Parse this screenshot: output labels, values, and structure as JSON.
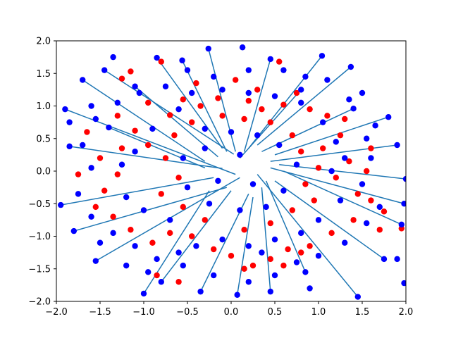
{
  "chart_data": {
    "type": "scatter",
    "title": "",
    "xlabel": "",
    "ylabel": "",
    "xlim": [
      -2,
      2
    ],
    "ylim": [
      -2,
      2
    ],
    "grid": false,
    "legend": "none",
    "xticks": [
      "−2.0",
      "−1.5",
      "−1.0",
      "−0.5",
      "0.0",
      "0.5",
      "1.0",
      "1.5",
      "2.0"
    ],
    "yticks": [
      "−2.0",
      "−1.5",
      "−1.0",
      "−0.5",
      "0.0",
      "0.5",
      "1.0",
      "1.5",
      "2.0"
    ],
    "colors": {
      "red_points": "#ff0000",
      "blue_points": "#0000ff",
      "lines": "#1f77b4"
    },
    "series": [
      {
        "kind": "segments",
        "segments": [
          [
            [
              0.03,
              0.26
            ],
            [
              -1.45,
              1.55
            ]
          ],
          [
            [
              -0.15,
              0.22
            ],
            [
              -1.1,
              1.3
            ]
          ],
          [
            [
              -0.3,
              0.15
            ],
            [
              -1.7,
              1.4
            ]
          ],
          [
            [
              0.05,
              -0.05
            ],
            [
              -1.9,
              0.95
            ]
          ],
          [
            [
              -0.1,
              0.04
            ],
            [
              -1.85,
              0.38
            ]
          ],
          [
            [
              -0.2,
              -0.1
            ],
            [
              -1.95,
              -0.52
            ]
          ],
          [
            [
              -0.05,
              -0.25
            ],
            [
              -1.8,
              -0.92
            ]
          ],
          [
            [
              0.1,
              -0.1
            ],
            [
              -1.55,
              -1.38
            ]
          ],
          [
            [
              -0.25,
              -0.3
            ],
            [
              -1.0,
              -1.88
            ]
          ],
          [
            [
              0.0,
              -0.3
            ],
            [
              -0.8,
              -1.7
            ]
          ],
          [
            [
              0.2,
              -0.35
            ],
            [
              -0.35,
              -1.85
            ]
          ],
          [
            [
              0.25,
              -0.4
            ],
            [
              0.07,
              -1.9
            ]
          ],
          [
            [
              0.35,
              -0.25
            ],
            [
              0.45,
              -1.85
            ]
          ],
          [
            [
              0.4,
              -0.15
            ],
            [
              0.85,
              -1.55
            ]
          ],
          [
            [
              0.3,
              -0.05
            ],
            [
              1.45,
              -1.93
            ]
          ],
          [
            [
              0.5,
              -0.15
            ],
            [
              1.75,
              -1.35
            ]
          ],
          [
            [
              0.6,
              0.0
            ],
            [
              1.95,
              -0.82
            ]
          ],
          [
            [
              0.45,
              0.05
            ],
            [
              1.98,
              -0.5
            ]
          ],
          [
            [
              0.55,
              0.1
            ],
            [
              2.0,
              -0.12
            ]
          ],
          [
            [
              0.45,
              0.15
            ],
            [
              1.9,
              0.4
            ]
          ],
          [
            [
              0.5,
              0.25
            ],
            [
              1.8,
              0.83
            ]
          ],
          [
            [
              0.35,
              0.3
            ],
            [
              1.4,
              0.96
            ]
          ],
          [
            [
              0.3,
              0.4
            ],
            [
              1.37,
              1.6
            ]
          ],
          [
            [
              0.2,
              0.35
            ],
            [
              1.04,
              1.77
            ]
          ],
          [
            [
              0.15,
              0.3
            ],
            [
              0.45,
              1.72
            ]
          ],
          [
            [
              0.05,
              0.3
            ],
            [
              -0.26,
              1.88
            ]
          ],
          [
            [
              -0.05,
              0.3
            ],
            [
              -0.56,
              1.7
            ]
          ],
          [
            [
              -0.1,
              0.35
            ],
            [
              -0.85,
              1.74
            ]
          ],
          [
            [
              0.1,
              0.2
            ],
            [
              0.8,
              1.25
            ]
          ],
          [
            [
              -0.3,
              0.05
            ],
            [
              -1.4,
              0.67
            ]
          ]
        ]
      },
      {
        "name": "",
        "color": "#ff0000",
        "points": [
          [
            -0.8,
            1.68
          ],
          [
            0.55,
            1.68
          ],
          [
            -1.25,
            1.42
          ],
          [
            -1.15,
            1.53
          ],
          [
            -0.95,
            1.05
          ],
          [
            -1.3,
            0.85
          ],
          [
            -1.1,
            0.62
          ],
          [
            -0.7,
            0.86
          ],
          [
            -0.55,
            1.1
          ],
          [
            -0.35,
            1.0
          ],
          [
            -0.15,
            1.12
          ],
          [
            0.2,
            1.08
          ],
          [
            0.35,
            0.95
          ],
          [
            0.6,
            1.02
          ],
          [
            0.9,
            0.95
          ],
          [
            1.1,
            0.85
          ],
          [
            1.25,
            0.55
          ],
          [
            1.05,
            0.35
          ],
          [
            1.35,
            0.15
          ],
          [
            1.2,
            -0.1
          ],
          [
            1.45,
            -0.35
          ],
          [
            1.6,
            -0.45
          ],
          [
            1.75,
            -0.62
          ],
          [
            1.95,
            -0.88
          ],
          [
            1.7,
            -0.9
          ],
          [
            1.4,
            -0.75
          ],
          [
            1.15,
            -0.95
          ],
          [
            0.9,
            -1.15
          ],
          [
            0.65,
            -1.2
          ],
          [
            0.45,
            -1.35
          ],
          [
            0.25,
            -1.45
          ],
          [
            0.0,
            -1.3
          ],
          [
            -0.2,
            -1.2
          ],
          [
            -0.45,
            -1.0
          ],
          [
            -0.7,
            -0.95
          ],
          [
            -0.9,
            -1.1
          ],
          [
            -1.15,
            -0.9
          ],
          [
            -1.35,
            -0.7
          ],
          [
            -1.55,
            -0.55
          ],
          [
            -1.45,
            -0.3
          ],
          [
            -1.3,
            -0.05
          ],
          [
            -1.5,
            0.2
          ],
          [
            -1.25,
            0.35
          ],
          [
            -0.95,
            0.4
          ],
          [
            -0.75,
            0.2
          ],
          [
            -0.6,
            -0.1
          ],
          [
            -0.8,
            -0.35
          ],
          [
            -0.55,
            -0.55
          ],
          [
            -0.3,
            -0.75
          ],
          [
            0.15,
            -0.9
          ],
          [
            0.45,
            -0.8
          ],
          [
            0.7,
            -0.6
          ],
          [
            0.95,
            -0.45
          ],
          [
            0.85,
            -0.2
          ],
          [
            1.0,
            0.05
          ],
          [
            0.8,
            0.3
          ],
          [
            0.7,
            0.55
          ],
          [
            0.45,
            0.75
          ],
          [
            0.15,
            0.8
          ],
          [
            -0.1,
            0.85
          ],
          [
            -0.45,
            0.75
          ],
          [
            -0.65,
            0.55
          ],
          [
            -0.85,
            -1.6
          ],
          [
            -0.6,
            -1.7
          ],
          [
            0.15,
            -1.5
          ],
          [
            0.6,
            -1.45
          ],
          [
            0.8,
            -1.25
          ],
          [
            1.55,
            0.0
          ],
          [
            1.6,
            0.35
          ],
          [
            1.3,
            0.8
          ],
          [
            -1.65,
            0.6
          ],
          [
            -1.75,
            -0.05
          ],
          [
            -0.4,
            1.35
          ],
          [
            0.05,
            1.4
          ],
          [
            0.3,
            1.25
          ],
          [
            0.75,
            1.2
          ]
        ]
      },
      {
        "name": "",
        "color": "#0000ff",
        "points": [
          [
            -1.45,
            1.55
          ],
          [
            -1.1,
            1.3
          ],
          [
            -1.7,
            1.4
          ],
          [
            -1.9,
            0.95
          ],
          [
            -1.85,
            0.38
          ],
          [
            -1.95,
            -0.52
          ],
          [
            -1.8,
            -0.92
          ],
          [
            -1.55,
            -1.38
          ],
          [
            -1.0,
            -1.88
          ],
          [
            -0.8,
            -1.7
          ],
          [
            -0.35,
            -1.85
          ],
          [
            0.07,
            -1.9
          ],
          [
            0.45,
            -1.85
          ],
          [
            0.85,
            -1.55
          ],
          [
            1.45,
            -1.93
          ],
          [
            1.75,
            -1.35
          ],
          [
            1.95,
            -0.82
          ],
          [
            1.98,
            -0.5
          ],
          [
            2.0,
            -0.12
          ],
          [
            1.9,
            0.4
          ],
          [
            1.8,
            0.83
          ],
          [
            1.4,
            0.96
          ],
          [
            1.37,
            1.6
          ],
          [
            1.04,
            1.77
          ],
          [
            0.45,
            1.72
          ],
          [
            -0.26,
            1.88
          ],
          [
            -0.56,
            1.7
          ],
          [
            -0.85,
            1.74
          ],
          [
            0.8,
            1.25
          ],
          [
            -1.4,
            0.67
          ],
          [
            0.13,
            1.9
          ],
          [
            -1.35,
            1.75
          ],
          [
            -0.5,
            1.55
          ],
          [
            -0.2,
            1.45
          ],
          [
            0.2,
            1.55
          ],
          [
            0.6,
            1.55
          ],
          [
            0.85,
            1.45
          ],
          [
            1.1,
            1.4
          ],
          [
            1.5,
            1.2
          ],
          [
            1.65,
            0.7
          ],
          [
            1.55,
            0.5
          ],
          [
            1.3,
            0.2
          ],
          [
            1.5,
            -0.2
          ],
          [
            1.7,
            -0.55
          ],
          [
            1.55,
            -0.8
          ],
          [
            1.3,
            -1.1
          ],
          [
            1.0,
            -1.3
          ],
          [
            0.75,
            -1.4
          ],
          [
            0.5,
            -1.6
          ],
          [
            0.2,
            -1.7
          ],
          [
            -0.2,
            -1.6
          ],
          [
            -0.55,
            -1.45
          ],
          [
            -0.85,
            -1.35
          ],
          [
            -1.1,
            -1.15
          ],
          [
            -1.35,
            -0.95
          ],
          [
            -1.6,
            -0.7
          ],
          [
            -1.75,
            -0.35
          ],
          [
            -1.6,
            0.05
          ],
          [
            -1.7,
            0.4
          ],
          [
            -1.55,
            0.8
          ],
          [
            -1.3,
            1.05
          ],
          [
            -1.05,
            1.2
          ],
          [
            -0.75,
            1.3
          ],
          [
            -0.45,
            1.2
          ],
          [
            -0.1,
            1.25
          ],
          [
            0.2,
            1.2
          ],
          [
            0.5,
            1.15
          ],
          [
            0.8,
            1.05
          ],
          [
            1.05,
            0.75
          ],
          [
            1.2,
            0.45
          ],
          [
            1.15,
            0.0
          ],
          [
            1.25,
            -0.45
          ],
          [
            1.0,
            -0.75
          ],
          [
            0.8,
            -0.95
          ],
          [
            0.5,
            -1.05
          ],
          [
            0.2,
            -1.15
          ],
          [
            -0.1,
            -1.05
          ],
          [
            -0.4,
            -1.15
          ],
          [
            -0.7,
            -0.75
          ],
          [
            -1.0,
            -0.6
          ],
          [
            -1.2,
            -0.4
          ],
          [
            -1.25,
            0.1
          ],
          [
            -1.1,
            0.3
          ],
          [
            -0.9,
            0.65
          ],
          [
            -0.6,
            0.95
          ],
          [
            -0.3,
            0.65
          ],
          [
            0.0,
            0.6
          ],
          [
            0.3,
            0.55
          ],
          [
            0.55,
            0.4
          ],
          [
            0.75,
            0.1
          ],
          [
            0.6,
            -0.3
          ],
          [
            0.4,
            -0.55
          ],
          [
            0.1,
            -0.6
          ],
          [
            -0.25,
            -0.5
          ],
          [
            -0.5,
            -0.25
          ],
          [
            -0.55,
            0.2
          ],
          [
            -0.3,
            0.35
          ],
          [
            0.1,
            0.25
          ],
          [
            -0.15,
            -0.15
          ],
          [
            0.25,
            -0.2
          ],
          [
            -1.2,
            -1.45
          ],
          [
            -0.95,
            -1.55
          ],
          [
            1.9,
            -1.35
          ],
          [
            1.98,
            -1.72
          ],
          [
            1.6,
            0.2
          ],
          [
            -1.5,
            -1.1
          ],
          [
            -1.85,
            0.75
          ],
          [
            0.9,
            -1.8
          ],
          [
            -0.6,
            -1.25
          ],
          [
            0.35,
            -1.25
          ],
          [
            1.35,
            1.1
          ],
          [
            -1.6,
            1.0
          ]
        ]
      }
    ]
  }
}
